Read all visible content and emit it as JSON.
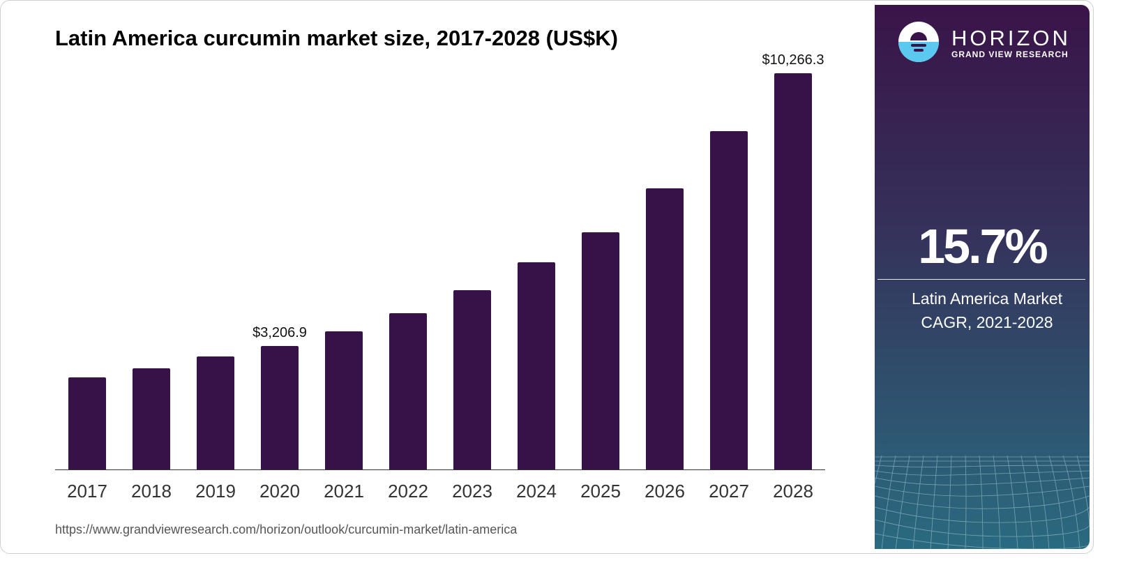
{
  "header": {
    "title": "Latin America curcumin market size, 2017-2028 (US$K)"
  },
  "chart_data": {
    "type": "bar",
    "title": "Latin America curcumin market size, 2017-2028 (US$K)",
    "xlabel": "",
    "ylabel": "US$K",
    "categories": [
      "2017",
      "2018",
      "2019",
      "2020",
      "2021",
      "2022",
      "2023",
      "2024",
      "2025",
      "2026",
      "2027",
      "2028"
    ],
    "values": [
      2386,
      2621,
      2928,
      3206.9,
      3579,
      4049,
      4645,
      5368,
      6145,
      7284,
      8766,
      10266.3
    ],
    "data_labels": {
      "2020": "$3,206.9",
      "2028": "$10,266.3"
    },
    "ylim": [
      0,
      10266.3
    ],
    "grid": false,
    "legend": "none",
    "bar_color": "#371249"
  },
  "labels": {
    "label_2020": "$3,206.9",
    "label_2028": "$10,266.3"
  },
  "footer": {
    "source_url": "https://www.grandviewresearch.com/horizon/outlook/curcumin-market/latin-america"
  },
  "sidebar": {
    "brand": "HORIZON",
    "brand_sub": "GRAND VIEW RESEARCH",
    "cagr_value": "15.7%",
    "cagr_label_line1": "Latin America Market",
    "cagr_label_line2": "CAGR, 2021-2028",
    "logo_icon": "horizon-sun-logo-icon",
    "colors": {
      "top": "#3a1449",
      "bottom": "#2a6a80",
      "logo_water": "#5bc8f0"
    }
  }
}
